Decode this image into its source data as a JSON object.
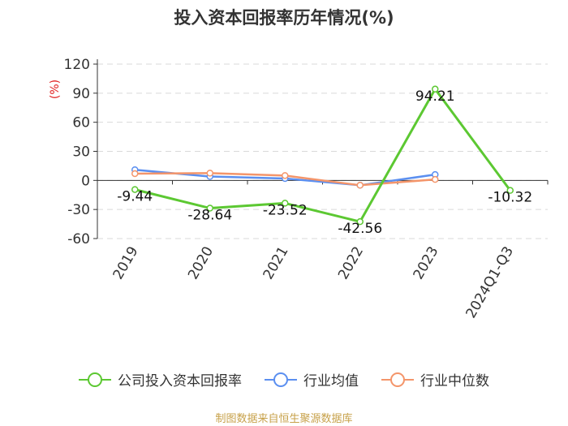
{
  "chart_data": {
    "type": "line",
    "title": "投入资本回报率历年情况(%)",
    "ylabel": "(%)",
    "categories": [
      "2019",
      "2020",
      "2021",
      "2022",
      "2023",
      "2024Q1-Q3"
    ],
    "ylim": [
      -60,
      120
    ],
    "yticks": [
      120,
      90,
      60,
      30,
      0,
      -30,
      -60
    ],
    "grid": true,
    "legend_position": "bottom",
    "series": [
      {
        "name": "公司投入资本回报率",
        "color": "#5cc832",
        "values": [
          -9.44,
          -28.64,
          -23.52,
          -42.56,
          94.21,
          -10.32
        ],
        "labels": [
          "-9.44",
          "-28.64",
          "-23.52",
          "-42.56",
          "94.21",
          "-10.32"
        ]
      },
      {
        "name": "行业均值",
        "color": "#5b8ff0",
        "values": [
          11,
          4,
          2,
          -5,
          6,
          null
        ]
      },
      {
        "name": "行业中位数",
        "color": "#f4956a",
        "values": [
          7,
          7.5,
          5,
          -5,
          1,
          null
        ]
      }
    ]
  },
  "source": "制图数据来自恒生聚源数据库"
}
